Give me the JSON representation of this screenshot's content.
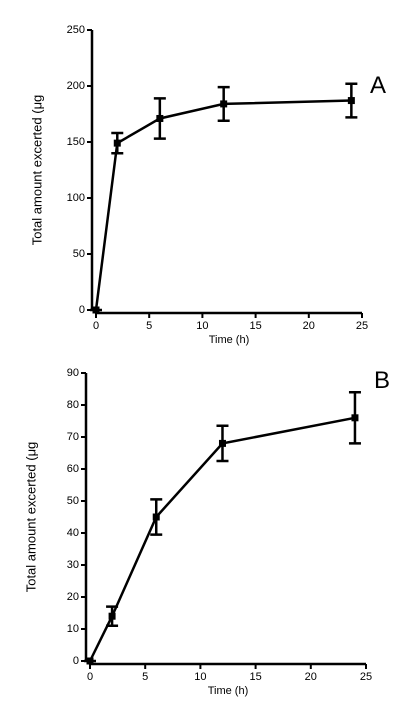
{
  "chart_data": [
    {
      "type": "line",
      "annotation": "A",
      "xlabel": "Time  (h)",
      "ylabel": "Total amount excerted (μg",
      "x": [
        0,
        2,
        6,
        12,
        24
      ],
      "series": [
        {
          "color": "#000000",
          "values": [
            0,
            149,
            171,
            184,
            187
          ],
          "errors": [
            0,
            9,
            18,
            15,
            15
          ]
        }
      ],
      "xlim": [
        0,
        25
      ],
      "ylim": [
        0,
        250
      ],
      "xticks": [
        0,
        5,
        10,
        15,
        20,
        25
      ],
      "yticks": [
        0,
        50,
        100,
        150,
        200,
        250
      ]
    },
    {
      "type": "line",
      "annotation": "B",
      "xlabel": "Time  (h)",
      "ylabel": "Total amount excerted (μg",
      "x": [
        0,
        2,
        6,
        12,
        24
      ],
      "series": [
        {
          "color": "#000000",
          "values": [
            0,
            14,
            45,
            68,
            76
          ],
          "errors": [
            0,
            3,
            5.5,
            5.5,
            8
          ]
        }
      ],
      "xlim": [
        0,
        25
      ],
      "ylim": [
        0,
        90
      ],
      "xticks": [
        0,
        5,
        10,
        15,
        20,
        25
      ],
      "yticks": [
        0,
        10,
        20,
        30,
        40,
        50,
        60,
        70,
        80,
        90
      ]
    }
  ]
}
